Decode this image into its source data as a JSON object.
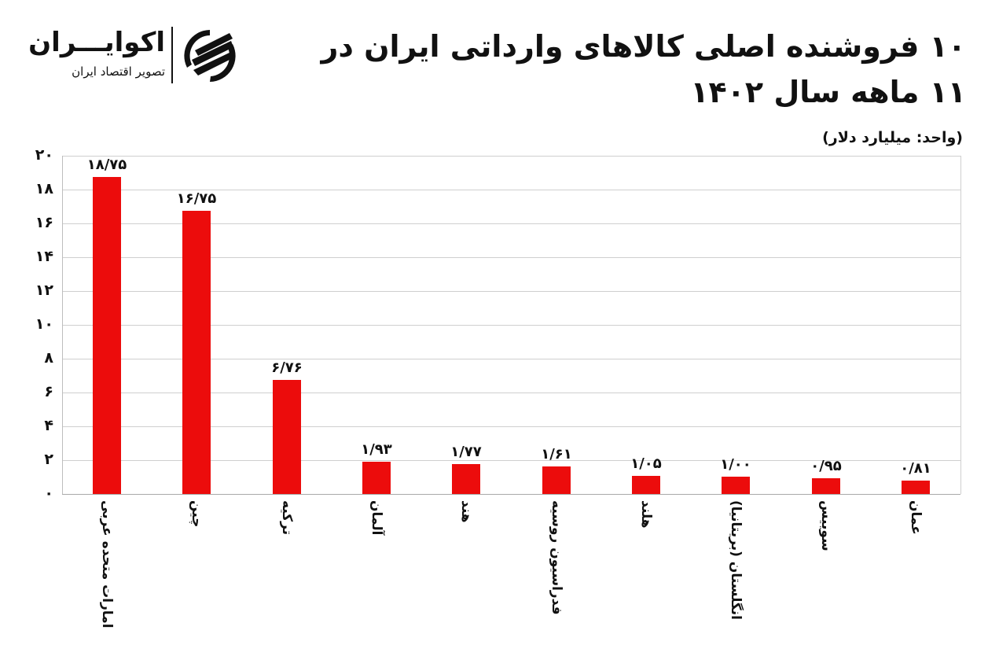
{
  "header": {
    "title": "۱۰ فروشنده اصلی کالاهای وارداتی ایران در ۱۱ ماهه سال ۱۴۰۲",
    "unit": "(واحد: میلیارد دلار)"
  },
  "logo": {
    "name": "اکوایـــران",
    "tagline": "تصویر اقتصاد ایران"
  },
  "colors": {
    "bar": "#ec0c0c",
    "grid": "#cfcfcf",
    "text": "#111111"
  },
  "y_ticks": [
    "۰",
    "۲",
    "۴",
    "۶",
    "۸",
    "۱۰",
    "۱۲",
    "۱۴",
    "۱۶",
    "۱۸",
    "۲۰"
  ],
  "chart_data": {
    "type": "bar",
    "title": "۱۰ فروشنده اصلی کالاهای وارداتی ایران در ۱۱ ماهه سال ۱۴۰۲",
    "subtitle": "(واحد: میلیارد دلار)",
    "xlabel": "",
    "ylabel": "میلیارد دلار",
    "ylim": [
      0,
      20
    ],
    "y_tick_step": 2,
    "grid": true,
    "legend": null,
    "categories": [
      "امارات متحده عربی",
      "چین",
      "ترکیه",
      "آلمان",
      "هند",
      "فدراسیون روسیه",
      "هلند",
      "انگلستان (بریتانیا)",
      "سوییس",
      "عمان"
    ],
    "values": [
      18.75,
      16.75,
      6.76,
      1.93,
      1.77,
      1.61,
      1.05,
      1.0,
      0.95,
      0.81
    ],
    "value_labels": [
      "۱۸/۷۵",
      "۱۶/۷۵",
      "۶/۷۶",
      "۱/۹۳",
      "۱/۷۷",
      "۱/۶۱",
      "۱/۰۵",
      "۱/۰۰",
      "۰/۹۵",
      "۰/۸۱"
    ]
  }
}
